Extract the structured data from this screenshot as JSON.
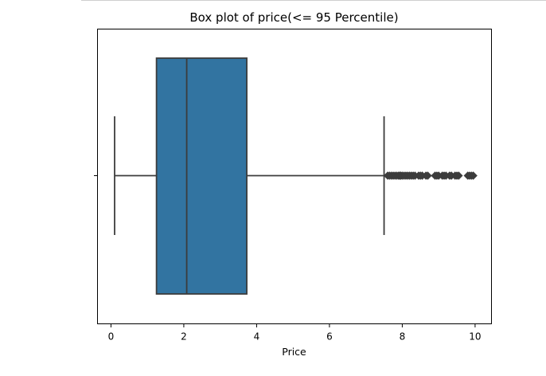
{
  "chart_data": {
    "type": "box",
    "orientation": "horizontal",
    "title": "Box plot of price(<= 95 Percentile)",
    "xlabel": "Price",
    "ylabel": "",
    "xlim": [
      -0.37,
      10.45
    ],
    "xticks": [
      0,
      2,
      4,
      6,
      8,
      10
    ],
    "grid": false,
    "box": {
      "whisker_low": 0.1,
      "q1": 1.25,
      "median": 2.08,
      "q3": 3.73,
      "whisker_high": 7.5,
      "color": "#3274a1",
      "line_color": "#3c3c3c"
    },
    "outliers": [
      7.6,
      7.65,
      7.7,
      7.75,
      7.8,
      7.85,
      7.9,
      7.93,
      7.96,
      8.0,
      8.05,
      8.1,
      8.15,
      8.2,
      8.25,
      8.3,
      8.35,
      8.45,
      8.5,
      8.55,
      8.65,
      8.7,
      8.9,
      8.95,
      9.0,
      9.1,
      9.15,
      9.2,
      9.3,
      9.35,
      9.45,
      9.5,
      9.55,
      9.8,
      9.85,
      9.9,
      9.95
    ]
  }
}
